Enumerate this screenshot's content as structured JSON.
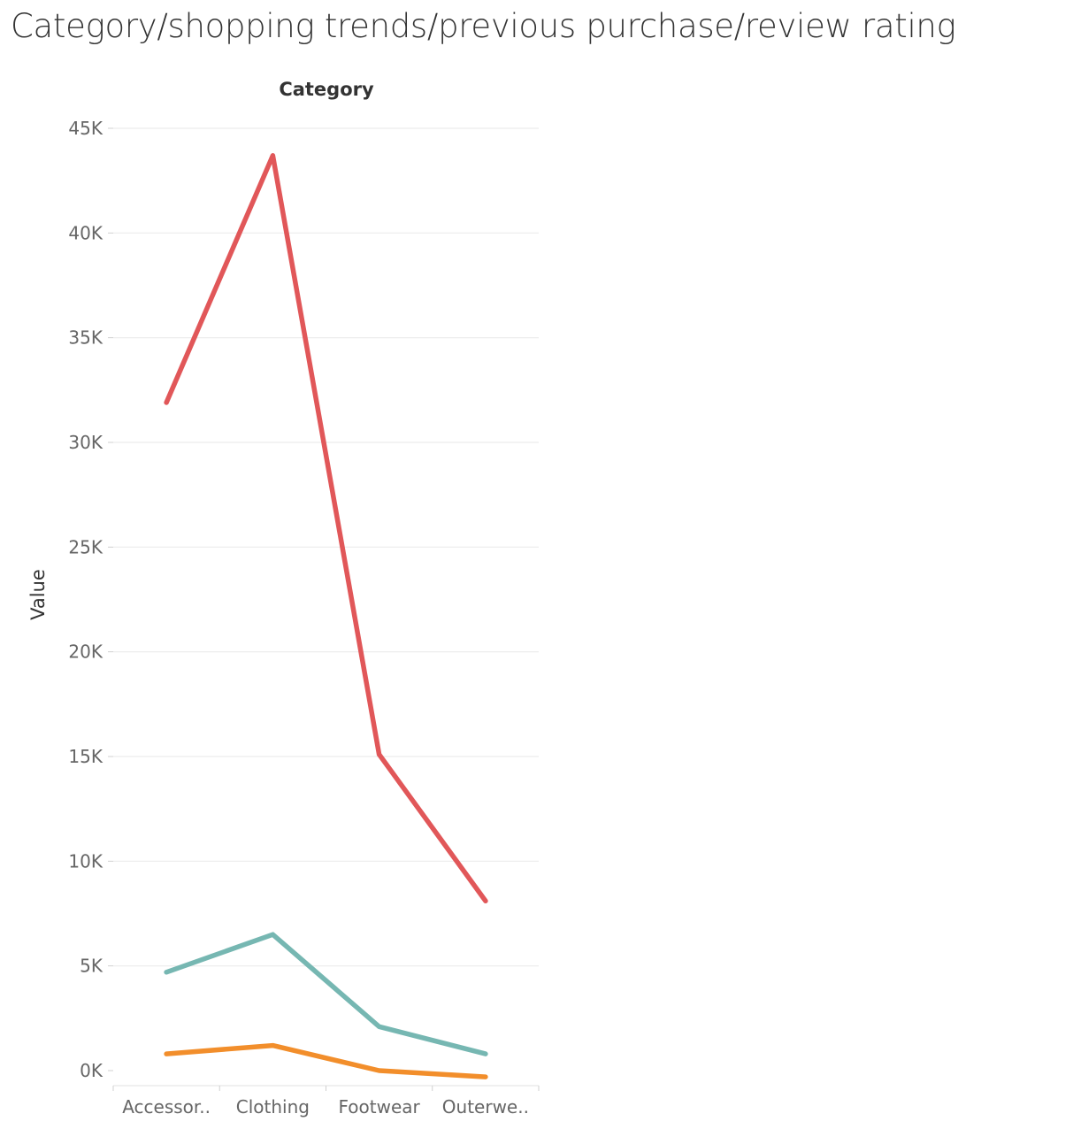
{
  "page": {
    "title": "Category/shopping trends/previous purchase/review rating"
  },
  "chart_data": {
    "type": "line",
    "title": "Category/shopping trends/previous purchase/review rating",
    "column_header": "Category",
    "xlabel": "",
    "ylabel": "Value",
    "categories": [
      "Accessories",
      "Clothing",
      "Footwear",
      "Outerwear"
    ],
    "category_tick_labels": [
      "Accessor..",
      "Clothing",
      "Footwear",
      "Outerwe.."
    ],
    "ylim": [
      0,
      45000
    ],
    "y_ticks": [
      0,
      5000,
      10000,
      15000,
      20000,
      25000,
      30000,
      35000,
      40000,
      45000
    ],
    "y_tick_labels": [
      "0K",
      "5K",
      "10K",
      "15K",
      "20K",
      "25K",
      "30K",
      "35K",
      "40K",
      "45K"
    ],
    "grid": true,
    "legend": "none",
    "series": [
      {
        "color": "#e15759",
        "values": [
          31900,
          43700,
          15100,
          8100
        ]
      },
      {
        "color": "#76b7b2",
        "values": [
          4700,
          6500,
          2100,
          800
        ]
      },
      {
        "color": "#f28e2b",
        "values": [
          800,
          1200,
          0,
          -300
        ]
      }
    ]
  }
}
